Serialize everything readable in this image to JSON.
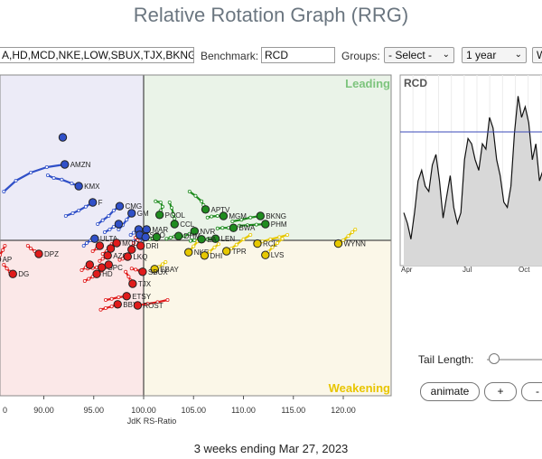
{
  "title": "Relative Rotation Graph (RRG)",
  "toolbar": {
    "symbols_value": "A,HD,MCD,NKE,LOW,SBUX,TJX,BKNG",
    "benchmark_label": "Benchmark:",
    "benchmark_value": "RCD",
    "groups_label": "Groups:",
    "groups_value": "- Select -",
    "period_value": "1 year",
    "extra_value": "W"
  },
  "quadrants": {
    "leading": "Leading",
    "weakening": "Weakening"
  },
  "x_axis": {
    "label": "JdK RS-Ratio",
    "ticks": [
      "90.00",
      "95.00",
      "100.00",
      "105.00",
      "110.00",
      "115.00",
      "120.00"
    ],
    "partial_tick": "0"
  },
  "colors": {
    "leading": "#1f8c1f",
    "weakening": "#e6c800",
    "lagging": "#e01b1b",
    "improving": "#3050c8"
  },
  "side_chart": {
    "label": "RCD",
    "months": [
      "Apr",
      "Jul",
      "Oct"
    ]
  },
  "controls": {
    "tail_label": "Tail Length:",
    "tail_value": 0.05,
    "animate_label": "animate",
    "plus_label": "+",
    "minus_label": "-"
  },
  "footer": "3 weeks ending Mar 27, 2023",
  "chart_data": {
    "type": "scatter",
    "title": "",
    "xlabel": "JdK RS-Ratio",
    "ylabel": "",
    "xlim": [
      85.5,
      124.8
    ],
    "x_ticks": [
      90,
      95,
      100,
      105,
      110,
      115,
      120
    ],
    "center": [
      100,
      100
    ],
    "points": [
      {
        "label": "AMZN",
        "quadrant": "improving",
        "x": 92.1,
        "y": 101.4,
        "tail": [
          [
            86.0,
            100.9
          ],
          [
            87.2,
            101.1
          ],
          [
            88.7,
            101.25
          ],
          [
            90.3,
            101.35
          ]
        ]
      },
      {
        "label": "",
        "quadrant": "improving",
        "x": 91.9,
        "y": 101.9,
        "tail": []
      },
      {
        "label": "KMX",
        "quadrant": "improving",
        "x": 93.5,
        "y": 101.0,
        "tail": [
          [
            90.4,
            101.2
          ],
          [
            91.0,
            101.15
          ],
          [
            91.8,
            101.12
          ],
          [
            92.8,
            101.05
          ]
        ]
      },
      {
        "label": "F",
        "quadrant": "improving",
        "x": 94.9,
        "y": 100.7,
        "tail": [
          [
            92.2,
            100.45
          ],
          [
            92.9,
            100.5
          ],
          [
            93.5,
            100.55
          ],
          [
            94.2,
            100.62
          ]
        ]
      },
      {
        "label": "CMG",
        "quadrant": "improving",
        "x": 97.6,
        "y": 100.63,
        "tail": [
          [
            95.4,
            100.3
          ],
          [
            95.9,
            100.37
          ],
          [
            96.5,
            100.45
          ],
          [
            97.0,
            100.55
          ]
        ]
      },
      {
        "label": "GM",
        "quadrant": "improving",
        "x": 98.8,
        "y": 100.5,
        "tail": [
          [
            97.5,
            100.2
          ],
          [
            97.9,
            100.28
          ],
          [
            98.3,
            100.38
          ]
        ]
      },
      {
        "label": "",
        "quadrant": "improving",
        "x": 97.5,
        "y": 100.3,
        "tail": [
          [
            96.1,
            100.15
          ],
          [
            96.6,
            100.2
          ],
          [
            97.0,
            100.25
          ]
        ]
      },
      {
        "label": "",
        "quadrant": "improving",
        "x": 99.5,
        "y": 100.2,
        "tail": [
          [
            98.7,
            100.1
          ],
          [
            99.0,
            100.14
          ]
        ]
      },
      {
        "label": "ULTA",
        "quadrant": "improving",
        "x": 95.1,
        "y": 100.03,
        "tail": [
          [
            94.0,
            99.9
          ],
          [
            94.3,
            99.95
          ],
          [
            94.7,
            100.0
          ]
        ]
      },
      {
        "label": "MAR",
        "quadrant": "improving",
        "x": 100.3,
        "y": 100.2,
        "tail": [
          [
            99.4,
            100.08
          ],
          [
            99.8,
            100.13
          ]
        ]
      },
      {
        "label": "TSCO",
        "quadrant": "improving",
        "x": 99.6,
        "y": 100.1,
        "tail": [
          [
            99.0,
            99.98
          ],
          [
            99.3,
            100.03
          ]
        ]
      },
      {
        "label": "",
        "quadrant": "improving",
        "x": 100.2,
        "y": 100.06,
        "tail": [
          [
            99.6,
            99.99
          ]
        ]
      },
      {
        "label": "POOL",
        "quadrant": "leading",
        "x": 101.6,
        "y": 100.47,
        "tail": [
          [
            101.2,
            100.72
          ],
          [
            101.7,
            100.7
          ],
          [
            101.9,
            100.62
          ],
          [
            101.7,
            100.55
          ]
        ]
      },
      {
        "label": "APTV",
        "quadrant": "leading",
        "x": 106.2,
        "y": 100.57,
        "tail": [
          [
            104.6,
            100.9
          ],
          [
            105.2,
            100.82
          ],
          [
            105.8,
            100.72
          ],
          [
            106.0,
            100.65
          ]
        ]
      },
      {
        "label": "MGM",
        "quadrant": "leading",
        "x": 108.0,
        "y": 100.45,
        "tail": [
          [
            106.4,
            100.42
          ],
          [
            106.8,
            100.44
          ],
          [
            107.4,
            100.45
          ]
        ]
      },
      {
        "label": "BKNG",
        "quadrant": "leading",
        "x": 111.7,
        "y": 100.45,
        "tail": [
          [
            108.9,
            100.35
          ],
          [
            109.8,
            100.38
          ],
          [
            110.7,
            100.42
          ]
        ]
      },
      {
        "label": "PHM",
        "quadrant": "leading",
        "x": 112.2,
        "y": 100.3,
        "tail": [
          [
            109.6,
            100.27
          ],
          [
            110.4,
            100.28
          ],
          [
            111.3,
            100.29
          ]
        ]
      },
      {
        "label": "CCL",
        "quadrant": "leading",
        "x": 103.1,
        "y": 100.3,
        "tail": [
          [
            102.6,
            100.7
          ],
          [
            102.8,
            100.6
          ],
          [
            103.0,
            100.48
          ],
          [
            103.1,
            100.4
          ]
        ]
      },
      {
        "label": "BWA",
        "quadrant": "leading",
        "x": 109.0,
        "y": 100.23,
        "tail": [
          [
            107.4,
            100.22
          ],
          [
            107.9,
            100.23
          ],
          [
            108.5,
            100.23
          ]
        ]
      },
      {
        "label": "NVR",
        "quadrant": "leading",
        "x": 105.1,
        "y": 100.17,
        "tail": [
          [
            103.6,
            100.05
          ],
          [
            104.1,
            100.08
          ],
          [
            104.6,
            100.12
          ]
        ]
      },
      {
        "label": "LEN",
        "quadrant": "leading",
        "x": 107.2,
        "y": 100.03,
        "tail": [
          [
            104.8,
            100.0
          ],
          [
            105.6,
            100.01
          ],
          [
            106.4,
            100.02
          ]
        ]
      },
      {
        "label": "DHM",
        "quadrant": "leading",
        "x": 103.5,
        "y": 100.08,
        "tail": [
          [
            102.3,
            100.03
          ],
          [
            102.7,
            100.05
          ],
          [
            103.1,
            100.07
          ]
        ]
      },
      {
        "label": "",
        "quadrant": "leading",
        "x": 101.3,
        "y": 100.06,
        "tail": [
          [
            100.6,
            100.02
          ],
          [
            100.9,
            100.04
          ]
        ]
      },
      {
        "label": "EA",
        "quadrant": "leading",
        "x": 105.8,
        "y": 100.02,
        "tail": [
          [
            104.7,
            99.99
          ],
          [
            105.1,
            100.0
          ],
          [
            105.5,
            100.01
          ]
        ]
      },
      {
        "label": "WYNN",
        "quadrant": "weakening",
        "x": 119.5,
        "y": 99.94,
        "tail": [
          [
            121.2,
            100.2
          ],
          [
            120.9,
            100.15
          ],
          [
            120.5,
            100.08
          ],
          [
            120.0,
            100.0
          ]
        ]
      },
      {
        "label": "RCL",
        "quadrant": "weakening",
        "x": 111.4,
        "y": 99.94,
        "tail": [
          [
            114.4,
            100.1
          ],
          [
            113.6,
            100.06
          ],
          [
            112.7,
            100.02
          ],
          [
            111.9,
            99.98
          ]
        ]
      },
      {
        "label": "TPR",
        "quadrant": "weakening",
        "x": 108.3,
        "y": 99.8,
        "tail": [
          [
            110.7,
            100.1
          ],
          [
            110.0,
            100.02
          ],
          [
            109.3,
            99.92
          ],
          [
            108.8,
            99.85
          ]
        ]
      },
      {
        "label": "LVS",
        "quadrant": "weakening",
        "x": 112.2,
        "y": 99.73,
        "tail": [
          [
            113.9,
            100.03
          ],
          [
            113.4,
            99.95
          ],
          [
            112.9,
            99.87
          ],
          [
            112.5,
            99.79
          ]
        ]
      },
      {
        "label": "NKE",
        "quadrant": "weakening",
        "x": 104.5,
        "y": 99.78,
        "tail": [
          [
            105.7,
            100.05
          ],
          [
            105.4,
            99.98
          ],
          [
            105.0,
            99.89
          ]
        ]
      },
      {
        "label": "DHI",
        "quadrant": "weakening",
        "x": 106.1,
        "y": 99.72,
        "tail": [
          [
            107.5,
            99.93
          ],
          [
            107.1,
            99.87
          ],
          [
            106.6,
            99.79
          ]
        ]
      },
      {
        "label": "EBAY",
        "quadrant": "weakening",
        "x": 101.1,
        "y": 99.47,
        "tail": [
          [
            102.2,
            99.6
          ],
          [
            101.9,
            99.56
          ],
          [
            101.5,
            99.51
          ]
        ]
      },
      {
        "label": "DRI",
        "quadrant": "lagging",
        "x": 99.7,
        "y": 99.9,
        "tail": [
          [
            99.2,
            100.05
          ],
          [
            99.4,
            100.0
          ]
        ]
      },
      {
        "label": "DPZ",
        "quadrant": "lagging",
        "x": 89.5,
        "y": 99.75,
        "tail": [
          [
            88.4,
            99.9
          ],
          [
            88.7,
            99.85
          ],
          [
            89.1,
            99.8
          ]
        ]
      },
      {
        "label": "AP",
        "quadrant": "lagging",
        "x": 85.3,
        "y": 99.65,
        "tail": [
          [
            86.1,
            99.9
          ],
          [
            85.9,
            99.82
          ],
          [
            85.6,
            99.73
          ]
        ]
      },
      {
        "label": "DG",
        "quadrant": "lagging",
        "x": 86.9,
        "y": 99.38,
        "tail": [
          [
            86.0,
            99.55
          ],
          [
            86.3,
            99.48
          ],
          [
            86.6,
            99.42
          ]
        ]
      },
      {
        "label": "MCD",
        "quadrant": "lagging",
        "x": 97.3,
        "y": 99.95,
        "tail": [
          [
            96.8,
            99.93
          ],
          [
            97.0,
            99.94
          ]
        ]
      },
      {
        "label": "AZO",
        "quadrant": "lagging",
        "x": 96.4,
        "y": 99.72,
        "tail": [
          [
            95.6,
            99.62
          ],
          [
            95.9,
            99.66
          ],
          [
            96.2,
            99.69
          ]
        ]
      },
      {
        "label": "HD",
        "quadrant": "lagging",
        "x": 95.3,
        "y": 99.38,
        "tail": [
          [
            94.1,
            99.25
          ],
          [
            94.5,
            99.29
          ],
          [
            94.9,
            99.33
          ]
        ]
      },
      {
        "label": "SBUX",
        "quadrant": "lagging",
        "x": 99.9,
        "y": 99.42,
        "tail": [
          [
            98.8,
            99.48
          ],
          [
            99.2,
            99.46
          ],
          [
            99.6,
            99.44
          ]
        ]
      },
      {
        "label": "TJX",
        "quadrant": "lagging",
        "x": 98.9,
        "y": 99.2,
        "tail": [
          [
            98.2,
            99.42
          ],
          [
            98.5,
            99.33
          ],
          [
            98.7,
            99.26
          ]
        ]
      },
      {
        "label": "ETSY",
        "quadrant": "lagging",
        "x": 98.3,
        "y": 98.97,
        "tail": [
          [
            96.2,
            98.9
          ],
          [
            96.8,
            98.92
          ],
          [
            97.5,
            98.95
          ]
        ]
      },
      {
        "label": "BBY",
        "quadrant": "lagging",
        "x": 97.4,
        "y": 98.82,
        "tail": [
          [
            95.7,
            98.72
          ],
          [
            96.2,
            98.75
          ],
          [
            96.8,
            98.78
          ]
        ]
      },
      {
        "label": "ROST",
        "quadrant": "lagging",
        "x": 99.4,
        "y": 98.8,
        "tail": [
          [
            102.4,
            98.9
          ],
          [
            101.4,
            98.86
          ],
          [
            100.4,
            98.83
          ]
        ]
      },
      {
        "label": "GPC",
        "quadrant": "lagging",
        "x": 95.8,
        "y": 99.5,
        "tail": [
          [
            94.4,
            99.48
          ],
          [
            94.9,
            99.49
          ],
          [
            95.3,
            99.5
          ]
        ]
      },
      {
        "label": "LKQ",
        "quadrant": "lagging",
        "x": 98.4,
        "y": 99.7,
        "tail": [
          [
            97.6,
            99.64
          ],
          [
            97.9,
            99.66
          ],
          [
            98.2,
            99.68
          ]
        ]
      },
      {
        "label": "",
        "quadrant": "lagging",
        "x": 96.7,
        "y": 99.85,
        "tail": [
          [
            95.9,
            99.75
          ],
          [
            96.3,
            99.8
          ]
        ]
      },
      {
        "label": "",
        "quadrant": "lagging",
        "x": 98.8,
        "y": 99.83,
        "tail": [
          [
            99.0,
            99.95
          ],
          [
            98.9,
            99.89
          ]
        ]
      },
      {
        "label": "",
        "quadrant": "lagging",
        "x": 94.6,
        "y": 99.55,
        "tail": [
          [
            93.8,
            99.45
          ],
          [
            94.2,
            99.5
          ]
        ]
      },
      {
        "label": "",
        "quadrant": "lagging",
        "x": 95.6,
        "y": 99.9,
        "tail": [
          [
            94.9,
            99.8
          ],
          [
            95.3,
            99.85
          ]
        ]
      },
      {
        "label": "",
        "quadrant": "lagging",
        "x": 96.5,
        "y": 99.55,
        "tail": [
          [
            95.8,
            99.44
          ],
          [
            96.2,
            99.5
          ]
        ]
      }
    ],
    "price_chart": {
      "type": "line",
      "series_name": "RCD",
      "x_labels": [
        "Apr",
        "Jul",
        "Oct"
      ],
      "values": [
        60,
        56,
        50,
        60,
        72,
        76,
        70,
        68,
        78,
        82,
        72,
        58,
        66,
        74,
        62,
        56,
        60,
        80,
        88,
        86,
        80,
        76,
        86,
        84,
        96,
        92,
        80,
        74,
        64,
        62,
        70,
        90,
        104,
        96,
        100,
        94,
        80,
        86,
        72,
        76,
        64,
        70,
        60
      ],
      "ylim": [
        40,
        112
      ],
      "reference_line": 40
    }
  }
}
